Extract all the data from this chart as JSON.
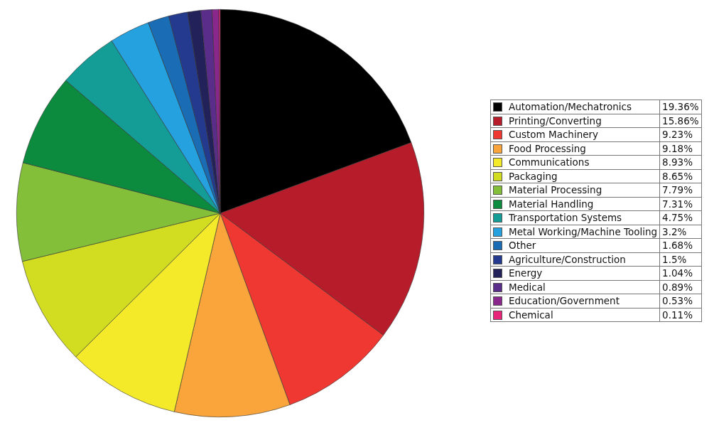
{
  "chart_data": {
    "type": "pie",
    "categories": [
      "Automation/Mechatronics",
      "Printing/Converting",
      "Custom Machinery",
      "Food Processing",
      "Communications",
      "Packaging",
      "Material Processing",
      "Material Handling",
      "Transportation Systems",
      "Metal Working/Machine Tooling",
      "Other",
      "Agriculture/Construction",
      "Energy",
      "Medical",
      "Education/Government",
      "Chemical"
    ],
    "values": [
      19.36,
      15.86,
      9.23,
      9.18,
      8.93,
      8.65,
      7.79,
      7.31,
      4.75,
      3.2,
      1.68,
      1.5,
      1.04,
      0.89,
      0.53,
      0.11
    ],
    "value_labels": [
      "19.36%",
      "15.86%",
      "9.23%",
      "9.18%",
      "8.93%",
      "8.65%",
      "7.79%",
      "7.31%",
      "4.75%",
      "3.2%",
      "1.68%",
      "1.5%",
      "1.04%",
      "0.89%",
      "0.53%",
      "0.11%"
    ],
    "colors": [
      "#000000",
      "#b71c2b",
      "#ee3831",
      "#f9a53b",
      "#f4ea2a",
      "#d2dd22",
      "#84bf3a",
      "#0c8a3e",
      "#139d96",
      "#24a1de",
      "#1a6cb5",
      "#243a8e",
      "#22215a",
      "#5a2d8a",
      "#8a278c",
      "#e8237a"
    ],
    "legend": "right"
  }
}
